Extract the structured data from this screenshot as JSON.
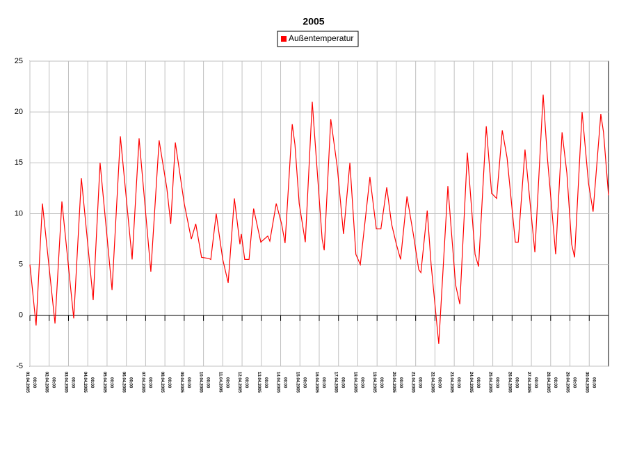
{
  "chart_data": {
    "type": "line",
    "title": "2005",
    "x": [
      0,
      0.32,
      0.65,
      1.3,
      1.66,
      2.27,
      2.67,
      3.28,
      3.64,
      4.26,
      4.69,
      5.3,
      5.66,
      6.27,
      6.7,
      7.1,
      7.3,
      7.54,
      8.0,
      8.37,
      8.6,
      8.9,
      9.27,
      9.38,
      9.66,
      10.0,
      10.28,
      10.6,
      10.89,
      10.96,
      11.14,
      11.36,
      11.6,
      11.97,
      12.33,
      12.44,
      12.77,
      13.05,
      13.23,
      13.6,
      13.74,
      13.96,
      14.28,
      14.64,
      14.75,
      15.15,
      15.26,
      15.6,
      15.94,
      16.26,
      16.59,
      16.9,
      17.13,
      17.63,
      17.96,
      18.2,
      18.5,
      18.75,
      19.0,
      19.22,
      19.55,
      19.88,
      20.16,
      20.27,
      20.6,
      20.8,
      21.2,
      21.67,
      22.07,
      22.29,
      22.68,
      23.08,
      23.26,
      23.66,
      23.94,
      24.2,
      24.49,
      24.74,
      25.17,
      25.32,
      25.67,
      25.96,
      26.18,
      26.61,
      26.83,
      27.08,
      27.26,
      27.59,
      27.84,
      28.09,
      28.24,
      28.63,
      28.96,
      29.2,
      29.6,
      29.74,
      30.0
    ],
    "series": [
      {
        "name": "Außentemperatur",
        "color": "#ff0000",
        "values": [
          5,
          -1,
          11,
          -0.8,
          11.2,
          -0.3,
          13.5,
          1.5,
          15,
          2.5,
          17.6,
          5.5,
          17.4,
          4.3,
          17.2,
          12.5,
          9,
          17,
          11,
          7.5,
          9,
          5.7,
          5.6,
          5.5,
          10,
          5.5,
          3.2,
          11.5,
          7,
          8,
          5.5,
          5.5,
          10.5,
          7.2,
          7.8,
          7.3,
          11,
          9,
          7.1,
          18.8,
          16.8,
          11,
          7.2,
          21,
          18,
          7.5,
          6.4,
          19.3,
          14.5,
          8,
          15,
          6,
          5,
          13.6,
          8.5,
          8.5,
          12.6,
          9,
          7,
          5.5,
          11.7,
          8,
          4.5,
          4.2,
          10.3,
          5,
          -2.8,
          12.7,
          3,
          1.1,
          16,
          6,
          4.8,
          18.6,
          12,
          11.5,
          18.2,
          15.5,
          7.2,
          7.2,
          16.3,
          10.5,
          6.2,
          21.7,
          15.5,
          10,
          6,
          18,
          14,
          7,
          5.7,
          20,
          13,
          10.2,
          19.8,
          18,
          11.8
        ]
      }
    ],
    "xlim": [
      0,
      30
    ],
    "xticks": [
      {
        "value": 0,
        "label": "01.04.2005 00:00"
      },
      {
        "value": 1,
        "label": "02.04.2005 00:00"
      },
      {
        "value": 2,
        "label": "03.04.2005 00:00"
      },
      {
        "value": 3,
        "label": "04.04.2005 00:00"
      },
      {
        "value": 4,
        "label": "05.04.2005 00:00"
      },
      {
        "value": 5,
        "label": "06.04.2005 00:00"
      },
      {
        "value": 6,
        "label": "07.04.2005 00:00"
      },
      {
        "value": 7,
        "label": "08.04.2005 00:00"
      },
      {
        "value": 8,
        "label": "09.04.2005 00:00"
      },
      {
        "value": 9,
        "label": "10.04.2005 00:00"
      },
      {
        "value": 10,
        "label": "11.04.2005 00:00"
      },
      {
        "value": 11,
        "label": "12.04.2005 00:00"
      },
      {
        "value": 12,
        "label": "13.04.2005 00:00"
      },
      {
        "value": 13,
        "label": "14.04.2005 00:00"
      },
      {
        "value": 14,
        "label": "15.04.2005 00:00"
      },
      {
        "value": 15,
        "label": "16.04.2005 00:00"
      },
      {
        "value": 16,
        "label": "17.04.2005 00:00"
      },
      {
        "value": 17,
        "label": "18.04.2005 00:00"
      },
      {
        "value": 18,
        "label": "19.04.2005 00:00"
      },
      {
        "value": 19,
        "label": "20.04.2005 00:00"
      },
      {
        "value": 20,
        "label": "21.04.2005 00:00"
      },
      {
        "value": 21,
        "label": "22.04.2005 00:00"
      },
      {
        "value": 22,
        "label": "23.04.2005 00:00"
      },
      {
        "value": 23,
        "label": "24.04.2005 00:00"
      },
      {
        "value": 24,
        "label": "25.04.2005 00:00"
      },
      {
        "value": 25,
        "label": "26.04.2005 00:00"
      },
      {
        "value": 26,
        "label": "27.04.2005 00:00"
      },
      {
        "value": 27,
        "label": "28.04.2005 00:00"
      },
      {
        "value": 28,
        "label": "29.04.2005 00:00"
      },
      {
        "value": 29,
        "label": "30.04.2005 00:00"
      }
    ],
    "ylim": [
      -5,
      25
    ],
    "yticks": [
      -5,
      0,
      5,
      10,
      15,
      20,
      25
    ],
    "grid": true,
    "legend": "top"
  }
}
